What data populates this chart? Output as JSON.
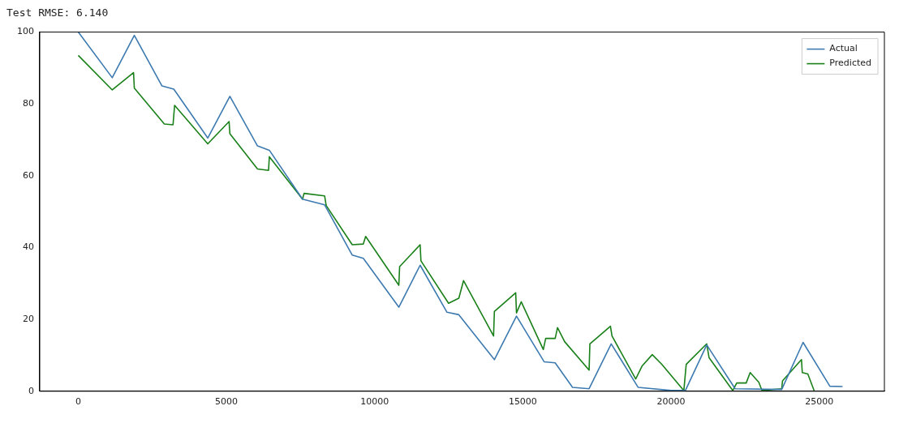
{
  "chart_data": {
    "type": "line",
    "title": "Test RMSE: 6.140",
    "xlim": [
      -1300,
      27200
    ],
    "xticks": [
      0,
      5000,
      10000,
      15000,
      20000,
      25000
    ],
    "ylim": [
      0,
      100
    ],
    "yticks": [
      0,
      20,
      40,
      60,
      80,
      100
    ],
    "grid": false,
    "legend": "top right",
    "line_style": "solid",
    "marker": "none",
    "series": [
      {
        "name": "Actual",
        "color": "#3d7ab0",
        "x": [
          0,
          1146,
          1891,
          2824,
          3223,
          4369,
          5115,
          6047,
          6447,
          7566,
          8312,
          9244,
          9617,
          10816,
          11535,
          12441,
          12841,
          14040,
          14786,
          15718,
          16091,
          16677,
          17236,
          17982,
          18888,
          20007,
          20486,
          21205,
          22164,
          23736,
          24456,
          25361,
          25788
        ],
        "values": [
          100,
          87.3,
          99.1,
          85,
          84.1,
          70.5,
          82.1,
          68.3,
          67.1,
          53.5,
          51.9,
          37.9,
          37,
          23.4,
          35.1,
          22,
          21.3,
          8.8,
          20.9,
          8.2,
          7.9,
          1.1,
          0.7,
          13.2,
          1.1,
          0.2,
          0.2,
          12.9,
          0.7,
          0.5,
          13.6,
          1.4,
          1.3
        ]
      },
      {
        "name": "Predicted",
        "color": "#1a8019",
        "x": [
          0,
          1146,
          1865,
          1891,
          2904,
          3197,
          3250,
          4369,
          5088,
          5115,
          6047,
          6420,
          6447,
          7566,
          7619,
          8312,
          8365,
          9244,
          9617,
          9697,
          10816,
          10843,
          11535,
          11562,
          12494,
          12841,
          13000,
          13293,
          14013,
          14040,
          14759,
          14786,
          14946,
          15691,
          15771,
          16091,
          16171,
          16411,
          17236,
          17263,
          17956,
          18009,
          18808,
          19021,
          19367,
          19687,
          20433,
          20513,
          21205,
          21285,
          22085,
          22218,
          22537,
          22670,
          22963,
          23070,
          23736,
          23763,
          24402,
          24429,
          24616,
          24829
        ],
        "values": [
          93.5,
          83.9,
          88.7,
          84.4,
          74.4,
          74.2,
          79.6,
          68.9,
          75.1,
          71.7,
          61.9,
          61.5,
          65.3,
          53.5,
          55.1,
          54.4,
          51.7,
          40.8,
          41,
          43.1,
          29.5,
          34.7,
          40.8,
          36.3,
          24.5,
          25.9,
          30.8,
          26.3,
          15.4,
          22.2,
          27.4,
          21.8,
          24.9,
          11.6,
          14.7,
          14.7,
          17.7,
          13.8,
          5.9,
          13.2,
          18.1,
          15.4,
          3.4,
          7,
          10.2,
          7.5,
          0.2,
          7.5,
          13.2,
          9.3,
          0.2,
          2.3,
          2.3,
          5.2,
          2.5,
          0.2,
          0.7,
          2.9,
          8.8,
          5.2,
          4.8,
          0.2
        ]
      }
    ]
  }
}
